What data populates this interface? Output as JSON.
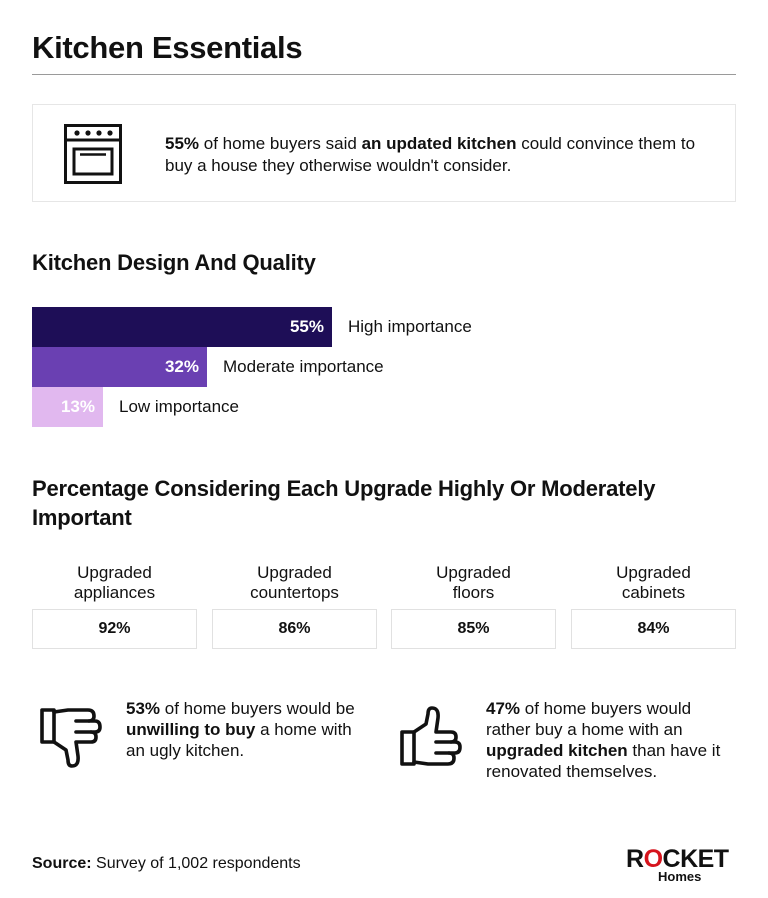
{
  "title": "Kitchen Essentials",
  "callout": {
    "icon": "oven-icon",
    "stat": "55%",
    "text_1": " of home buyers said ",
    "highlight": "an updated kitchen",
    "text_2": " could convince them to buy a house they otherwise wouldn't consider."
  },
  "chart_data": [
    {
      "type": "bar",
      "orientation": "horizontal",
      "title": "Kitchen Design And Quality",
      "categories": [
        "High importance",
        "Moderate importance",
        "Low importance"
      ],
      "values": [
        55,
        32,
        13
      ],
      "value_labels": [
        "55%",
        "32%",
        "13%"
      ],
      "unit": "%",
      "colors": [
        "#1e0e57",
        "#6a40b2",
        "#e1b8ef"
      ],
      "xlim": [
        0,
        100
      ],
      "grid": false
    },
    {
      "type": "table",
      "title": "Percentage Considering Each Upgrade Highly Or Moderately Important",
      "categories": [
        [
          "Upgraded",
          "appliances"
        ],
        [
          "Upgraded",
          "countertops"
        ],
        [
          "Upgraded",
          "floors"
        ],
        [
          "Upgraded",
          "cabinets"
        ]
      ],
      "values": [
        92,
        86,
        85,
        84
      ],
      "value_labels": [
        "92%",
        "86%",
        "85%",
        "84%"
      ],
      "unit": "%"
    }
  ],
  "stats": [
    {
      "icon": "thumbs-down-icon",
      "stat": "53%",
      "text_1": " of home buyers would be ",
      "highlight": "unwilling to buy",
      "text_2": " a home with an ugly kitchen."
    },
    {
      "icon": "thumbs-up-icon",
      "stat": "47%",
      "text_1": " of home buyers would rather buy a home with an ",
      "highlight": "upgraded kitchen",
      "text_2": " than have it renovated themselves."
    }
  ],
  "source": {
    "label": "Source:",
    "text": " Survey of 1,002 respondents"
  },
  "logo": {
    "r": "R",
    "o": "O",
    "rest": "CKET",
    "sub": "Homes",
    "accent": "#d6141d"
  }
}
